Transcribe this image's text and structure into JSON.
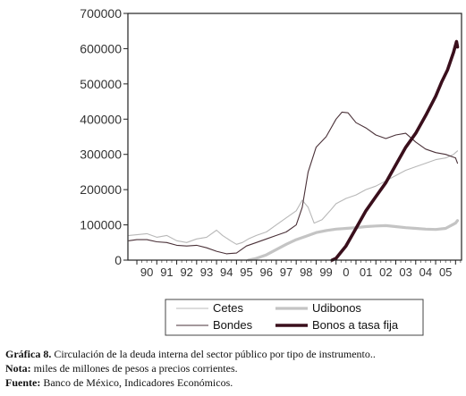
{
  "chart_data": {
    "type": "line",
    "title": "",
    "xlabel": "",
    "ylabel": "",
    "ylim": [
      0,
      700000
    ],
    "yticks": [
      0,
      100000,
      200000,
      300000,
      400000,
      500000,
      600000,
      700000
    ],
    "ytick_labels": [
      "0",
      "100000",
      "200000",
      "300000",
      "400000",
      "500000",
      "600000",
      "700000"
    ],
    "xlim": [
      1989.55,
      2006.3
    ],
    "xtick_labels": [
      "90",
      "91",
      "92",
      "93",
      "94",
      "95",
      "96",
      "97",
      "98",
      "99",
      "0",
      "01",
      "02",
      "03",
      "04",
      "05"
    ],
    "grid": false,
    "legend_position": "bottom",
    "series": [
      {
        "name": "Cetes",
        "color": "#b8b8b8",
        "style": "thin",
        "x": [
          1989.6,
          1990.5,
          1991.0,
          1991.5,
          1992.0,
          1992.5,
          1993.0,
          1993.5,
          1994.0,
          1994.3,
          1994.7,
          1995.0,
          1995.3,
          1995.6,
          1996.0,
          1996.5,
          1997.0,
          1997.5,
          1998.0,
          1998.3,
          1998.6,
          1998.9,
          1999.3,
          1999.7,
          2000.0,
          2000.5,
          2001.0,
          2001.5,
          2002.0,
          2002.5,
          2003.0,
          2003.5,
          2004.0,
          2004.5,
          2005.0,
          2005.5,
          2005.9,
          2006.1
        ],
        "y": [
          70000,
          75000,
          65000,
          70000,
          55000,
          50000,
          60000,
          65000,
          85000,
          70000,
          55000,
          45000,
          50000,
          60000,
          70000,
          80000,
          100000,
          120000,
          140000,
          170000,
          150000,
          105000,
          115000,
          140000,
          160000,
          175000,
          185000,
          200000,
          210000,
          225000,
          240000,
          255000,
          265000,
          275000,
          285000,
          290000,
          300000,
          310000
        ]
      },
      {
        "name": "Udibonos",
        "color": "#c4c4c4",
        "style": "thick",
        "x": [
          1995.6,
          1996.0,
          1996.5,
          1997.0,
          1997.5,
          1998.0,
          1998.5,
          1999.0,
          1999.5,
          2000.0,
          2000.5,
          2001.0,
          2001.5,
          2002.0,
          2002.5,
          2003.0,
          2003.5,
          2004.0,
          2004.5,
          2005.0,
          2005.5,
          2006.0,
          2006.1
        ],
        "y": [
          0,
          5000,
          15000,
          30000,
          45000,
          58000,
          68000,
          78000,
          84000,
          88000,
          90000,
          92000,
          95000,
          97000,
          98000,
          95000,
          92000,
          90000,
          88000,
          87000,
          90000,
          105000,
          112000
        ]
      },
      {
        "name": "Bondes",
        "color": "#4a3138",
        "style": "thin",
        "x": [
          1989.6,
          1990.0,
          1990.5,
          1991.0,
          1991.5,
          1992.0,
          1992.5,
          1993.0,
          1993.5,
          1994.0,
          1994.5,
          1995.0,
          1995.5,
          1996.0,
          1996.5,
          1997.0,
          1997.5,
          1998.0,
          1998.3,
          1998.6,
          1999.0,
          1999.5,
          2000.0,
          2000.3,
          2000.6,
          2001.0,
          2001.5,
          2002.0,
          2002.5,
          2003.0,
          2003.5,
          2004.0,
          2004.5,
          2005.0,
          2005.5,
          2006.0,
          2006.1
        ],
        "y": [
          55000,
          58000,
          58000,
          52000,
          50000,
          42000,
          40000,
          42000,
          35000,
          25000,
          18000,
          20000,
          40000,
          50000,
          60000,
          70000,
          80000,
          100000,
          150000,
          250000,
          320000,
          350000,
          400000,
          420000,
          418000,
          390000,
          375000,
          355000,
          345000,
          355000,
          360000,
          335000,
          315000,
          305000,
          300000,
          290000,
          275000
        ]
      },
      {
        "name": "Bonos a tasa fija",
        "color": "#3a0f1c",
        "style": "bold",
        "x": [
          1999.8,
          2000.0,
          2000.5,
          2001.0,
          2001.5,
          2002.0,
          2002.5,
          2003.0,
          2003.5,
          2004.0,
          2004.5,
          2005.0,
          2005.3,
          2005.6,
          2005.9,
          2006.05,
          2006.1
        ],
        "y": [
          0,
          5000,
          40000,
          90000,
          140000,
          180000,
          220000,
          270000,
          320000,
          360000,
          410000,
          465000,
          505000,
          540000,
          590000,
          620000,
          605000
        ]
      }
    ]
  },
  "legend": {
    "items": [
      {
        "label": "Cetes",
        "color": "#b8b8b8",
        "style": "thin"
      },
      {
        "label": "Udibonos",
        "color": "#c4c4c4",
        "style": "thick"
      },
      {
        "label": "Bondes",
        "color": "#4a3138",
        "style": "thin"
      },
      {
        "label": "Bonos a tasa fija",
        "color": "#3a0f1c",
        "style": "bold"
      }
    ]
  },
  "caption": {
    "figure_label": "Gráfica 8.",
    "figure_text": " Circulación de la deuda interna del sector público por tipo de instrumento..",
    "note_label": "Nota:",
    "note_text": "  miles de millones de pesos a precios corrientes.",
    "source_label": "Fuente:",
    "source_text": "  Banco de México, Indicadores Económicos."
  }
}
